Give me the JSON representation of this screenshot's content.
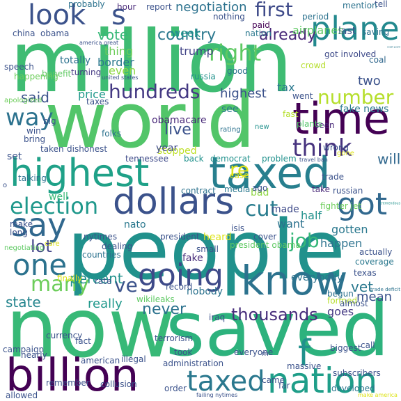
{
  "title": "Word cloud",
  "palette": [
    "#440154",
    "#3b528b",
    "#21918c",
    "#5ec962",
    "#fde725"
  ],
  "words": [
    {
      "text": "million",
      "color": "#3fbc73"
    },
    {
      "text": "world",
      "color": "#52c569"
    },
    {
      "text": "people",
      "color": "#21918c"
    },
    {
      "text": "now",
      "color": "#38b977"
    },
    {
      "text": "saved",
      "color": "#2db27d"
    },
    {
      "text": "highest",
      "color": "#1fa188"
    },
    {
      "text": "taxed",
      "color": "#277f8e"
    },
    {
      "text": "time",
      "color": "#440154"
    },
    {
      "text": "billion",
      "color": "#440154"
    },
    {
      "text": "nation",
      "color": "#1f9e89"
    },
    {
      "text": "dollars",
      "color": "#3b528b"
    },
    {
      "text": "know",
      "color": "#2c728e"
    },
    {
      "text": "look",
      "color": "#3b528b"
    },
    {
      "text": "plane",
      "color": "#23898e"
    },
    {
      "text": "going",
      "color": "#3e4a89"
    },
    {
      "text": "say",
      "color": "#31688e"
    },
    {
      "text": "one",
      "color": "#2c728e"
    },
    {
      "text": "election",
      "color": "#1f988b"
    },
    {
      "text": "think",
      "color": "#46327e"
    },
    {
      "text": "got",
      "color": "#31688e"
    },
    {
      "text": "taxed",
      "color": "#2a788e"
    },
    {
      "text": "hundreds",
      "color": "#443983"
    },
    {
      "text": "many",
      "color": "#6ccd5a"
    },
    {
      "text": "way",
      "color": "#2c728e"
    },
    {
      "text": "s",
      "color": "#3b528b"
    },
    {
      "text": "f",
      "color": "#21918c"
    },
    {
      "text": "ve",
      "color": "#3b528b"
    },
    {
      "text": "first",
      "color": "#3e4a89"
    },
    {
      "text": "right",
      "color": "#5ec962"
    },
    {
      "text": "re",
      "color": "#dde318"
    },
    {
      "text": "number",
      "color": "#b5de2b"
    },
    {
      "text": "cut",
      "color": "#287c8e"
    },
    {
      "text": "thousands",
      "color": "#472d7b"
    },
    {
      "text": "lot",
      "color": "#414487"
    },
    {
      "text": "state",
      "color": "#25858e"
    },
    {
      "text": "vote",
      "color": "#37b878"
    },
    {
      "text": "country",
      "color": "#2a788e"
    },
    {
      "text": "live",
      "color": "#3b528b"
    },
    {
      "text": "job",
      "color": "#35b779"
    },
    {
      "text": "never",
      "color": "#2c728e"
    },
    {
      "text": "percent",
      "color": "#21918c"
    },
    {
      "text": "already",
      "color": "#482878"
    },
    {
      "text": "will",
      "color": "#31688e"
    },
    {
      "text": "negotiation",
      "color": "#2c728e"
    },
    {
      "text": "said",
      "color": "#3b528b"
    },
    {
      "text": "price",
      "color": "#1f988b"
    },
    {
      "text": "vet",
      "color": "#2a788e"
    },
    {
      "text": "two",
      "color": "#3b528b"
    },
    {
      "text": "highest",
      "color": "#3b528b"
    },
    {
      "text": "tax",
      "color": "#2a788e"
    },
    {
      "text": "airplanes",
      "color": "#5ec962"
    },
    {
      "text": "thing",
      "color": "#6ccd5a"
    },
    {
      "text": "border",
      "color": "#2a788e"
    },
    {
      "text": "even",
      "color": "#8fd744"
    },
    {
      "text": "trump",
      "color": "#414487"
    },
    {
      "text": "week",
      "color": "#1f988b"
    },
    {
      "text": "really",
      "color": "#1f988b"
    },
    {
      "text": "totally",
      "color": "#2c728e"
    },
    {
      "text": "mean",
      "color": "#3b528b"
    },
    {
      "text": "goes",
      "color": "#443983"
    },
    {
      "text": "half",
      "color": "#21918c"
    },
    {
      "text": "want",
      "color": "#2c728e"
    },
    {
      "text": "well",
      "color": "#38b977"
    },
    {
      "text": "nato",
      "color": "#2a788e"
    },
    {
      "text": "heard",
      "color": "#dde318"
    },
    {
      "text": "made",
      "color": "#3e4a89"
    },
    {
      "text": "gotten",
      "color": "#2a788e"
    },
    {
      "text": "happen",
      "color": "#2c728e"
    },
    {
      "text": "fake",
      "color": "#472d7b"
    },
    {
      "text": "bad",
      "color": "#8fd744"
    },
    {
      "text": "nobody",
      "color": "#2c728e"
    },
    {
      "text": "everybody",
      "color": "#2c728e"
    },
    {
      "text": "texas",
      "color": "#3b528b"
    },
    {
      "text": "fake news",
      "color": "#2a788e"
    },
    {
      "text": "see",
      "color": "#2a788e"
    },
    {
      "text": "stopped",
      "color": "#bddf26"
    },
    {
      "text": "obamacare",
      "color": "#482878"
    },
    {
      "text": "year",
      "color": "#3e4a89"
    },
    {
      "text": "folks",
      "color": "#2c728e"
    },
    {
      "text": "talking",
      "color": "#2c728e"
    },
    {
      "text": "set",
      "color": "#3b528b"
    },
    {
      "text": "coast guard",
      "color": "#2a788e"
    },
    {
      "text": "crowd",
      "color": "#b5de2b"
    },
    {
      "text": "good",
      "color": "#2c728e"
    },
    {
      "text": "got involved",
      "color": "#3e4a89"
    },
    {
      "text": "coal",
      "color": "#31688e"
    },
    {
      "text": "russia",
      "color": "#21918c"
    },
    {
      "text": "united states",
      "color": "#3b528b"
    },
    {
      "text": "hour",
      "color": "#482878"
    },
    {
      "text": "report",
      "color": "#3b528b"
    },
    {
      "text": "probably",
      "color": "#2c728e"
    },
    {
      "text": "nothing",
      "color": "#3b528b"
    },
    {
      "text": "paid",
      "color": "#440154"
    },
    {
      "text": "nation",
      "color": "#2a788e"
    },
    {
      "text": "period",
      "color": "#2c728e"
    },
    {
      "text": "developed",
      "color": "#2a788e"
    },
    {
      "text": "last",
      "color": "#3b528b"
    },
    {
      "text": "saving",
      "color": "#2c728e"
    },
    {
      "text": "tell",
      "color": "#3b528b"
    },
    {
      "text": "mention",
      "color": "#2c728e"
    },
    {
      "text": "china",
      "color": "#3b528b"
    },
    {
      "text": "obama",
      "color": "#3b528b"
    },
    {
      "text": "america great",
      "color": "#3b528b"
    },
    {
      "text": "speech",
      "color": "#3b528b"
    },
    {
      "text": "turning",
      "color": "#443983"
    },
    {
      "text": "benefit",
      "color": "#5ec962"
    },
    {
      "text": "happening",
      "color": "#6ccd5a"
    },
    {
      "text": "apologized",
      "color": "#6ccd5a"
    },
    {
      "text": "taxes",
      "color": "#3b528b"
    },
    {
      "text": "went",
      "color": "#3b528b"
    },
    {
      "text": "fast",
      "color": "#b5de2b"
    },
    {
      "text": "seen",
      "color": "#482878"
    },
    {
      "text": "plants",
      "color": "#52c569"
    },
    {
      "text": "big",
      "color": "#3b528b"
    },
    {
      "text": "win",
      "color": "#3b528b"
    },
    {
      "text": "bring",
      "color": "#3b528b"
    },
    {
      "text": "rating",
      "color": "#2c728e"
    },
    {
      "text": "new",
      "color": "#21918c"
    },
    {
      "text": "taken",
      "color": "#3b528b"
    },
    {
      "text": "dishonest",
      "color": "#3b528b"
    },
    {
      "text": "tennessee",
      "color": "#3e4a89"
    },
    {
      "text": "back",
      "color": "#21918c"
    },
    {
      "text": "democrat",
      "color": "#21918c"
    },
    {
      "text": "problem",
      "color": "#21918c"
    },
    {
      "text": "wrong",
      "color": "#3b528b"
    },
    {
      "text": "gone",
      "color": "#dde318"
    },
    {
      "text": "case",
      "color": "#dde318"
    },
    {
      "text": "media",
      "color": "#2a788e"
    },
    {
      "text": "travel ban",
      "color": "#3b528b"
    },
    {
      "text": "trade",
      "color": "#3b528b"
    },
    {
      "text": "ago",
      "color": "#3b528b"
    },
    {
      "text": "take",
      "color": "#482878"
    },
    {
      "text": "russian",
      "color": "#3b528b"
    },
    {
      "text": "fighter jet",
      "color": "#6ccd5a"
    },
    {
      "text": "tremendous",
      "color": "#21918c"
    },
    {
      "text": "contract",
      "color": "#2c728e"
    },
    {
      "text": "make",
      "color": "#3b528b"
    },
    {
      "text": "long",
      "color": "#3b528b"
    },
    {
      "text": "nytimes",
      "color": "#3b528b"
    },
    {
      "text": "president",
      "color": "#3b528b"
    },
    {
      "text": "isis",
      "color": "#3b528b"
    },
    {
      "text": "cover",
      "color": "#3b528b"
    },
    {
      "text": "care",
      "color": "#dde318"
    },
    {
      "text": "small",
      "color": "#3b528b"
    },
    {
      "text": "president obama",
      "color": "#5ec962"
    },
    {
      "text": "negotiating",
      "color": "#5ec962"
    },
    {
      "text": "dealing",
      "color": "#3b528b"
    },
    {
      "text": "coverage",
      "color": "#2a788e"
    },
    {
      "text": "countries",
      "color": "#2c728e"
    },
    {
      "text": "rate",
      "color": "#3b528b"
    },
    {
      "text": "finally",
      "color": "#dde318"
    },
    {
      "text": "record",
      "color": "#3b528b"
    },
    {
      "text": "actually",
      "color": "#3b528b"
    },
    {
      "text": "trade deficit",
      "color": "#2c728e"
    },
    {
      "text": "formed",
      "color": "#b5de2b"
    },
    {
      "text": "begun",
      "color": "#2c728e"
    },
    {
      "text": "almost",
      "color": "#3b528b"
    },
    {
      "text": "wikileaks",
      "color": "#5ec962"
    },
    {
      "text": "terrorism",
      "color": "#3b528b"
    },
    {
      "text": "iraq",
      "color": "#3b528b"
    },
    {
      "text": "illegal",
      "color": "#3b528b"
    },
    {
      "text": "currency",
      "color": "#3b528b"
    },
    {
      "text": "fact",
      "color": "#3b528b"
    },
    {
      "text": "campaign",
      "color": "#3b528b"
    },
    {
      "text": "nearly",
      "color": "#3b528b"
    },
    {
      "text": "american",
      "color": "#3b528b"
    },
    {
      "text": "everyone",
      "color": "#3b528b"
    },
    {
      "text": "took",
      "color": "#3b528b"
    },
    {
      "text": "administration",
      "color": "#3b528b"
    },
    {
      "text": "massive",
      "color": "#3b528b"
    },
    {
      "text": "biggest",
      "color": "#3b528b"
    },
    {
      "text": "call",
      "color": "#3b528b"
    },
    {
      "text": "came",
      "color": "#3b528b"
    },
    {
      "text": "far",
      "color": "#3b528b"
    },
    {
      "text": "subscribers",
      "color": "#3b528b"
    },
    {
      "text": "remember",
      "color": "#3b528b"
    },
    {
      "text": "collusion",
      "color": "#3b528b"
    },
    {
      "text": "order",
      "color": "#3b528b"
    },
    {
      "text": "allowed",
      "color": "#3b528b"
    },
    {
      "text": "failing nytimes",
      "color": "#3b528b"
    },
    {
      "text": "make america",
      "color": "#dde318"
    },
    {
      "text": "o",
      "color": "#3b528b"
    },
    {
      "text": "m",
      "color": "#3b528b"
    }
  ]
}
